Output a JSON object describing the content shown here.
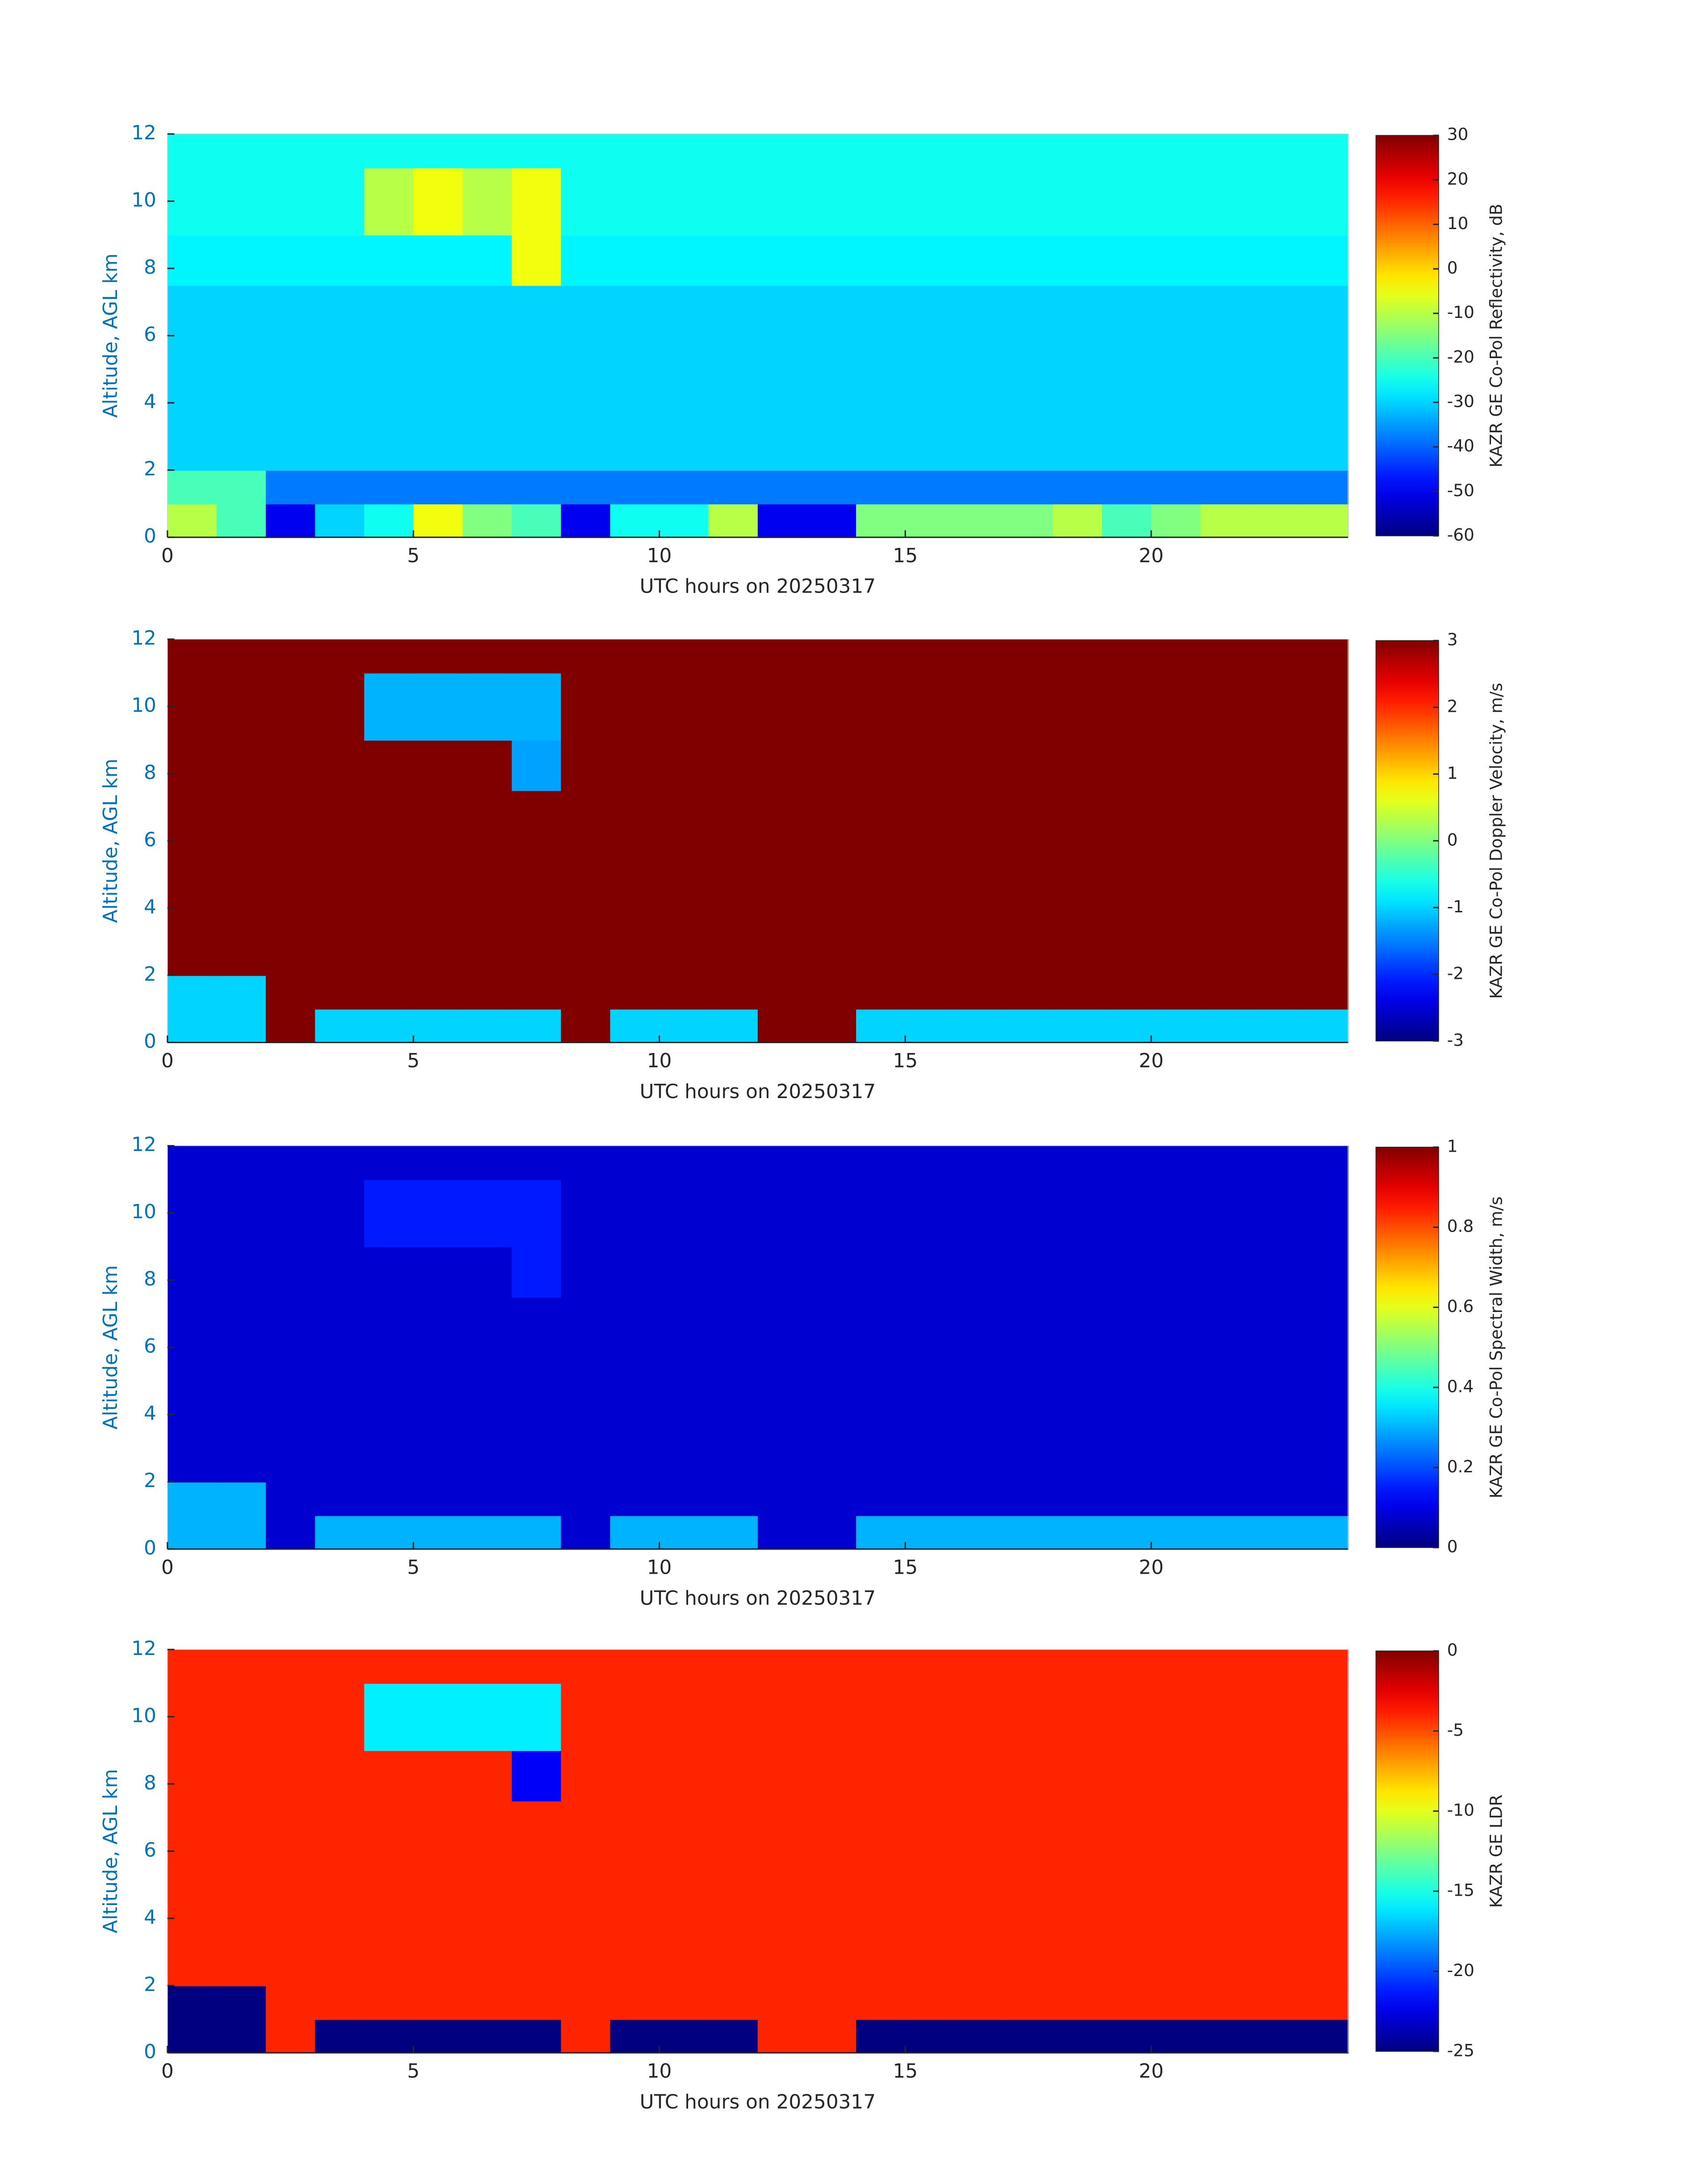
{
  "chart_data": [
    {
      "type": "heatmap",
      "colormap": "jet",
      "x": [
        0,
        1,
        2,
        3,
        4,
        5,
        6,
        7,
        8,
        9,
        10,
        11,
        12,
        13,
        14,
        15,
        16,
        17,
        18,
        19,
        20,
        21,
        22,
        23,
        24
      ],
      "y": [
        0,
        1,
        2,
        7.5,
        9,
        11,
        12
      ],
      "values": [
        [
          -10,
          -20,
          -50,
          -30,
          -25,
          -5,
          -15,
          -20,
          -50,
          -25,
          -25,
          -10,
          -50,
          -50,
          -15,
          -15,
          -15,
          -15,
          -10,
          -20,
          -15,
          -10,
          -10,
          -10
        ],
        [
          -20,
          -20,
          -38,
          -38,
          -38,
          -38,
          -38,
          -38,
          -38,
          -38,
          -38,
          -38,
          -38,
          -38,
          -38,
          -38,
          -38,
          -38,
          -38,
          -38,
          -38,
          -38,
          -38,
          -38
        ],
        [
          -30,
          -30,
          -30,
          -30,
          -30,
          -30,
          -30,
          -30,
          -30,
          -30,
          -30,
          -30,
          -30,
          -30,
          -30,
          -30,
          -30,
          -30,
          -30,
          -30,
          -30,
          -30,
          -30,
          -30
        ],
        [
          -27,
          -27,
          -27,
          -27,
          -27,
          -27,
          -27,
          -5,
          -27,
          -27,
          -27,
          -27,
          -27,
          -27,
          -27,
          -27,
          -27,
          -27,
          -27,
          -27,
          -27,
          -27,
          -27,
          -27
        ],
        [
          -25,
          -25,
          -25,
          -25,
          -10,
          -5,
          -10,
          -5,
          -25,
          -25,
          -25,
          -25,
          -25,
          -25,
          -25,
          -25,
          -25,
          -25,
          -25,
          -25,
          -25,
          -25,
          -25,
          -25
        ],
        [
          -25,
          -25,
          -25,
          -25,
          -25,
          -25,
          -25,
          -25,
          -25,
          -25,
          -25,
          -25,
          -25,
          -25,
          -25,
          -25,
          -25,
          -25,
          -25,
          -25,
          -25,
          -25,
          -25,
          -25
        ]
      ],
      "xlim": [
        0,
        24
      ],
      "xticks": [
        0,
        5,
        10,
        15,
        20
      ],
      "ylim": [
        0,
        12
      ],
      "yticks": [
        0,
        2,
        4,
        6,
        8,
        10,
        12
      ],
      "xlabel": "UTC hours on 20250317",
      "ylabel": "Altitude, AGL km",
      "colorbar_label": "KAZR GE Co-Pol Reflectivity, dB",
      "clim": [
        -60,
        30
      ],
      "cticks": [
        -60,
        -50,
        -40,
        -30,
        -20,
        -10,
        0,
        10,
        20,
        30
      ]
    },
    {
      "type": "heatmap",
      "colormap": "jet",
      "x": [
        0,
        1,
        2,
        3,
        4,
        5,
        6,
        7,
        8,
        9,
        10,
        11,
        12,
        13,
        14,
        15,
        16,
        17,
        18,
        19,
        20,
        21,
        22,
        23,
        24
      ],
      "y": [
        0,
        1,
        2,
        7.5,
        9,
        11,
        12
      ],
      "values": [
        [
          -1,
          -1,
          3,
          -1,
          -1,
          -1,
          -1,
          -1,
          3,
          -1,
          -1,
          -1,
          3,
          3,
          -1,
          -1,
          -1,
          -1,
          -1,
          -1,
          -1,
          -1,
          -1,
          -1
        ],
        [
          -1,
          -1,
          3,
          3,
          3,
          3,
          3,
          3,
          3,
          3,
          3,
          3,
          3,
          3,
          3,
          3,
          3,
          3,
          3,
          3,
          3,
          3,
          3,
          3
        ],
        [
          3,
          3,
          3,
          3,
          3,
          3,
          3,
          3,
          3,
          3,
          3,
          3,
          3,
          3,
          3,
          3,
          3,
          3,
          3,
          3,
          3,
          3,
          3,
          3
        ],
        [
          3,
          3,
          3,
          3,
          3,
          3,
          3,
          -1.3,
          3,
          3,
          3,
          3,
          3,
          3,
          3,
          3,
          3,
          3,
          3,
          3,
          3,
          3,
          3,
          3
        ],
        [
          3,
          3,
          3,
          3,
          -1.2,
          -1.2,
          -1.2,
          -1.2,
          3,
          3,
          3,
          3,
          3,
          3,
          3,
          3,
          3,
          3,
          3,
          3,
          3,
          3,
          3,
          3
        ],
        [
          3,
          3,
          3,
          3,
          3,
          3,
          3,
          3,
          3,
          3,
          3,
          3,
          3,
          3,
          3,
          3,
          3,
          3,
          3,
          3,
          3,
          3,
          3,
          3
        ]
      ],
      "xlim": [
        0,
        24
      ],
      "xticks": [
        0,
        5,
        10,
        15,
        20
      ],
      "ylim": [
        0,
        12
      ],
      "yticks": [
        0,
        2,
        4,
        6,
        8,
        10,
        12
      ],
      "xlabel": "UTC hours on 20250317",
      "ylabel": "Altitude, AGL km",
      "colorbar_label": "KAZR GE Co-Pol Doppler Velocity, m/s",
      "clim": [
        -3,
        3
      ],
      "cticks": [
        -3,
        -2,
        -1,
        0,
        1,
        2,
        3
      ]
    },
    {
      "type": "heatmap",
      "colormap": "jet",
      "x": [
        0,
        1,
        2,
        3,
        4,
        5,
        6,
        7,
        8,
        9,
        10,
        11,
        12,
        13,
        14,
        15,
        16,
        17,
        18,
        19,
        20,
        21,
        22,
        23,
        24
      ],
      "y": [
        0,
        1,
        2,
        7.5,
        9,
        11,
        12
      ],
      "values": [
        [
          0.3,
          0.3,
          0.08,
          0.3,
          0.3,
          0.3,
          0.3,
          0.3,
          0.08,
          0.3,
          0.3,
          0.3,
          0.08,
          0.08,
          0.3,
          0.3,
          0.3,
          0.3,
          0.3,
          0.3,
          0.3,
          0.3,
          0.3,
          0.3
        ],
        [
          0.3,
          0.3,
          0.08,
          0.08,
          0.08,
          0.08,
          0.08,
          0.08,
          0.08,
          0.08,
          0.08,
          0.08,
          0.08,
          0.08,
          0.08,
          0.08,
          0.08,
          0.08,
          0.08,
          0.08,
          0.08,
          0.08,
          0.08,
          0.08
        ],
        [
          0.08,
          0.08,
          0.08,
          0.08,
          0.08,
          0.08,
          0.08,
          0.08,
          0.08,
          0.08,
          0.08,
          0.08,
          0.08,
          0.08,
          0.08,
          0.08,
          0.08,
          0.08,
          0.08,
          0.08,
          0.08,
          0.08,
          0.08,
          0.08
        ],
        [
          0.08,
          0.08,
          0.08,
          0.08,
          0.08,
          0.08,
          0.08,
          0.15,
          0.08,
          0.08,
          0.08,
          0.08,
          0.08,
          0.08,
          0.08,
          0.08,
          0.08,
          0.08,
          0.08,
          0.08,
          0.08,
          0.08,
          0.08,
          0.08
        ],
        [
          0.08,
          0.08,
          0.08,
          0.08,
          0.15,
          0.15,
          0.15,
          0.15,
          0.08,
          0.08,
          0.08,
          0.08,
          0.08,
          0.08,
          0.08,
          0.08,
          0.08,
          0.08,
          0.08,
          0.08,
          0.08,
          0.08,
          0.08,
          0.08
        ],
        [
          0.08,
          0.08,
          0.08,
          0.08,
          0.08,
          0.08,
          0.08,
          0.08,
          0.08,
          0.08,
          0.08,
          0.08,
          0.08,
          0.08,
          0.08,
          0.08,
          0.08,
          0.08,
          0.08,
          0.08,
          0.08,
          0.08,
          0.08,
          0.08
        ]
      ],
      "xlim": [
        0,
        24
      ],
      "xticks": [
        0,
        5,
        10,
        15,
        20
      ],
      "ylim": [
        0,
        12
      ],
      "yticks": [
        0,
        2,
        4,
        6,
        8,
        10,
        12
      ],
      "xlabel": "UTC hours on 20250317",
      "ylabel": "Altitude, AGL km",
      "colorbar_label": "KAZR GE Co-Pol Spectral Width, m/s",
      "clim": [
        0,
        1
      ],
      "cticks": [
        0,
        0.2,
        0.4,
        0.6,
        0.8,
        1
      ]
    },
    {
      "type": "heatmap",
      "colormap": "jet",
      "x": [
        0,
        1,
        2,
        3,
        4,
        5,
        6,
        7,
        8,
        9,
        10,
        11,
        12,
        13,
        14,
        15,
        16,
        17,
        18,
        19,
        20,
        21,
        22,
        23,
        24
      ],
      "y": [
        0,
        1,
        2,
        7.5,
        9,
        11,
        12
      ],
      "values": [
        [
          -25,
          -25,
          -4,
          -25,
          -25,
          -25,
          -25,
          -25,
          -4,
          -25,
          -25,
          -25,
          -4,
          -4,
          -25,
          -25,
          -25,
          -25,
          -25,
          -25,
          -25,
          -25,
          -25,
          -25
        ],
        [
          -25,
          -25,
          -4,
          -4,
          -4,
          -4,
          -4,
          -4,
          -4,
          -4,
          -4,
          -4,
          -4,
          -4,
          -4,
          -4,
          -4,
          -4,
          -4,
          -4,
          -4,
          -4,
          -4,
          -4
        ],
        [
          -4,
          -4,
          -4,
          -4,
          -4,
          -4,
          -4,
          -4,
          -4,
          -4,
          -4,
          -4,
          -4,
          -4,
          -4,
          -4,
          -4,
          -4,
          -4,
          -4,
          -4,
          -4,
          -4,
          -4
        ],
        [
          -4,
          -4,
          -4,
          -4,
          -4,
          -4,
          -4,
          -22,
          -4,
          -4,
          -4,
          -4,
          -4,
          -4,
          -4,
          -4,
          -4,
          -4,
          -4,
          -4,
          -4,
          -4,
          -4,
          -4
        ],
        [
          -4,
          -4,
          -4,
          -4,
          -16,
          -16,
          -16,
          -16,
          -4,
          -4,
          -4,
          -4,
          -4,
          -4,
          -4,
          -4,
          -4,
          -4,
          -4,
          -4,
          -4,
          -4,
          -4,
          -4
        ],
        [
          -4,
          -4,
          -4,
          -4,
          -4,
          -4,
          -4,
          -4,
          -4,
          -4,
          -4,
          -4,
          -4,
          -4,
          -4,
          -4,
          -4,
          -4,
          -4,
          -4,
          -4,
          -4,
          -4,
          -4
        ]
      ],
      "xlim": [
        0,
        24
      ],
      "xticks": [
        0,
        5,
        10,
        15,
        20
      ],
      "ylim": [
        0,
        12
      ],
      "yticks": [
        0,
        2,
        4,
        6,
        8,
        10,
        12
      ],
      "xlabel": "UTC hours on 20250317",
      "ylabel": "Altitude, AGL km",
      "colorbar_label": "KAZR GE LDR",
      "clim": [
        -25,
        0
      ],
      "cticks": [
        -25,
        -20,
        -15,
        -10,
        -5,
        0
      ]
    }
  ]
}
